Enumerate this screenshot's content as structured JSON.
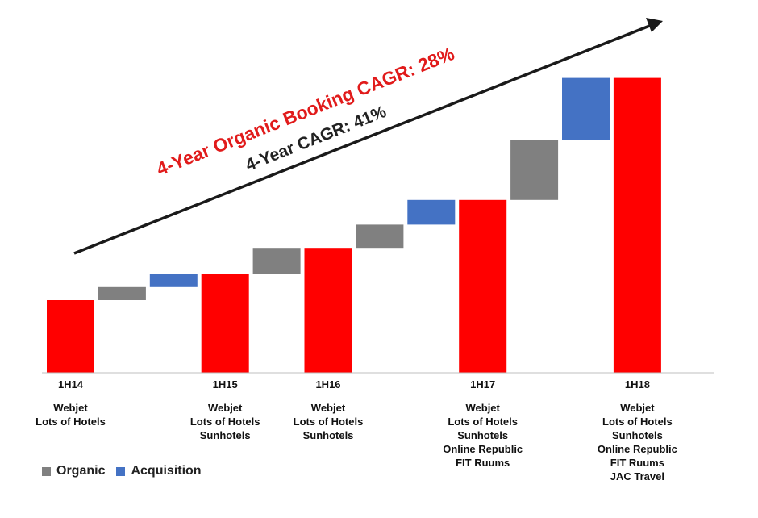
{
  "chart_data": {
    "type": "bar",
    "subtype": "waterfall",
    "colors": {
      "total": "#ff0000",
      "organic": "#808080",
      "acquisition": "#4472c4",
      "arrow": "#1a1a1a"
    },
    "ylim": [
      0,
      100
    ],
    "steps": [
      {
        "kind": "total",
        "label": "1H14",
        "value": 25.0
      },
      {
        "kind": "organic",
        "from": 25.0,
        "to": 29.5
      },
      {
        "kind": "acquisition",
        "from": 29.5,
        "to": 34.0
      },
      {
        "kind": "total",
        "label": "1H15",
        "value": 34.0
      },
      {
        "kind": "organic",
        "from": 34.0,
        "to": 43.0
      },
      {
        "kind": "total",
        "label": "1H16",
        "value": 43.0
      },
      {
        "kind": "organic",
        "from": 43.0,
        "to": 51.0
      },
      {
        "kind": "acquisition",
        "from": 51.0,
        "to": 59.5
      },
      {
        "kind": "total",
        "label": "1H17",
        "value": 59.5
      },
      {
        "kind": "organic",
        "from": 59.5,
        "to": 80.0
      },
      {
        "kind": "acquisition",
        "from": 80.0,
        "to": 101.5
      },
      {
        "kind": "total",
        "label": "1H18",
        "value": 101.5
      }
    ],
    "periods": [
      {
        "label": "1H14",
        "constituents": [
          "Webjet",
          "Lots of Hotels"
        ]
      },
      {
        "label": "1H15",
        "constituents": [
          "Webjet",
          "Lots of Hotels",
          "Sunhotels"
        ]
      },
      {
        "label": "1H16",
        "constituents": [
          "Webjet",
          "Lots of Hotels",
          "Sunhotels"
        ]
      },
      {
        "label": "1H17",
        "constituents": [
          "Webjet",
          "Lots of Hotels",
          "Sunhotels",
          "Online Republic",
          "FIT Ruums"
        ]
      },
      {
        "label": "1H18",
        "constituents": [
          "Webjet",
          "Lots of Hotels",
          "Sunhotels",
          "Online Republic",
          "FIT Ruums",
          "JAC Travel"
        ]
      }
    ],
    "annotations": {
      "organic_cagr": "4-Year Organic Booking CAGR: 28%",
      "total_cagr": "4-Year CAGR: 41%"
    },
    "legend": [
      {
        "label": "Organic",
        "color": "#808080"
      },
      {
        "label": "Acquisition",
        "color": "#4472c4"
      }
    ]
  }
}
